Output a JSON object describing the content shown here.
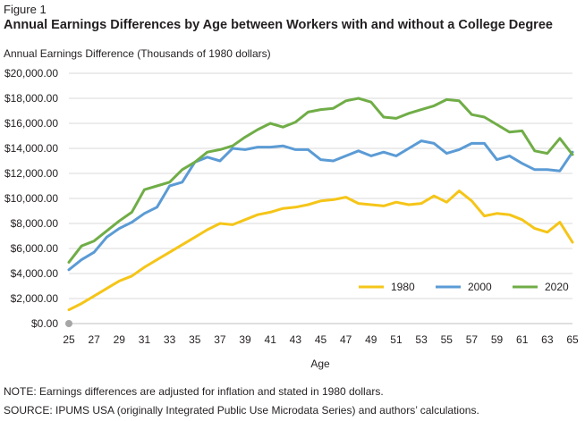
{
  "figure": {
    "label": "Figure 1",
    "title": "Annual Earnings Differences by Age between Workers with and without a College Degree",
    "note": "NOTE: Earnings differences are adjusted for inflation and stated in 1980 dollars.",
    "source": "SOURCE: IPUMS USA (originally Integrated Public Use Microdata Series) and authors’ calculations."
  },
  "chart_data": {
    "type": "line",
    "title": "Annual Earnings Differences by Age between Workers with and without a College Degree",
    "ylabel": "Annual Earnings Difference (Thousands of 1980 dollars)",
    "xlabel": "Age",
    "ylim": [
      0,
      20000
    ],
    "yticks": [
      0,
      2000,
      4000,
      6000,
      8000,
      10000,
      12000,
      14000,
      16000,
      18000,
      20000
    ],
    "ytick_labels": [
      "$0.00",
      "$2,000.00",
      "$4,000.00",
      "$6,000.00",
      "$8,000.00",
      "$10,000.00",
      "$12,000.00",
      "$14,000.00",
      "$16,000.00",
      "$18,000.00",
      "$20,000.00"
    ],
    "xticks": [
      25,
      27,
      29,
      31,
      33,
      35,
      37,
      39,
      41,
      43,
      45,
      47,
      49,
      51,
      53,
      55,
      57,
      59,
      61,
      63,
      65
    ],
    "grid": "horizontal",
    "legend_position": "bottom-right",
    "x": [
      25,
      26,
      27,
      28,
      29,
      30,
      31,
      32,
      33,
      34,
      35,
      36,
      37,
      38,
      39,
      40,
      41,
      42,
      43,
      44,
      45,
      46,
      47,
      48,
      49,
      50,
      51,
      52,
      53,
      54,
      55,
      56,
      57,
      58,
      59,
      60,
      61,
      62,
      63,
      64,
      65
    ],
    "series": [
      {
        "name": "1980",
        "color": "#f5c518",
        "values": [
          1100,
          1600,
          2200,
          2800,
          3400,
          3800,
          4500,
          5100,
          5700,
          6300,
          6900,
          7500,
          8000,
          7900,
          8300,
          8700,
          8900,
          9200,
          9300,
          9500,
          9800,
          9900,
          10100,
          9600,
          9500,
          9400,
          9700,
          9500,
          9600,
          10200,
          9700,
          10600,
          9800,
          8600,
          8800,
          8700,
          8300,
          7600,
          7300,
          8100,
          6500
        ]
      },
      {
        "name": "2000",
        "color": "#5b9bd5",
        "values": [
          4300,
          5100,
          5700,
          6900,
          7600,
          8100,
          8800,
          9300,
          11000,
          11300,
          12900,
          13300,
          13000,
          14000,
          13900,
          14100,
          14100,
          14200,
          13900,
          13900,
          13100,
          13000,
          13400,
          13800,
          13400,
          13700,
          13400,
          14000,
          14600,
          14400,
          13600,
          13900,
          14400,
          14400,
          13100,
          13400,
          12800,
          12300,
          12300,
          12200,
          13700
        ]
      },
      {
        "name": "2020",
        "color": "#70ad47",
        "values": [
          4900,
          6200,
          6600,
          7400,
          8200,
          8900,
          10700,
          11000,
          11300,
          12300,
          12900,
          13700,
          13900,
          14200,
          14900,
          15500,
          16000,
          15700,
          16100,
          16900,
          17100,
          17200,
          17800,
          18000,
          17700,
          16500,
          16400,
          16800,
          17100,
          17400,
          17900,
          17800,
          16700,
          16500,
          15900,
          15300,
          15400,
          13800,
          13600,
          14800,
          13500
        ]
      }
    ]
  }
}
